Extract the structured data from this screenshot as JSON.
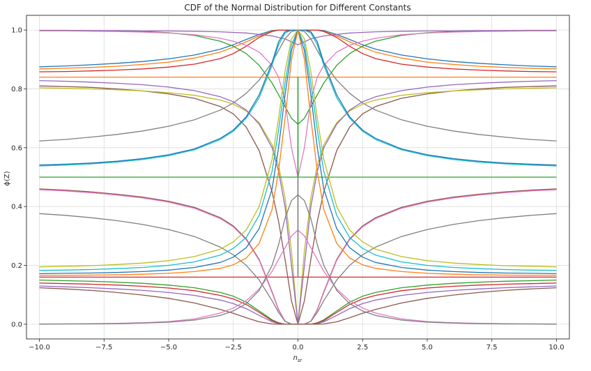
{
  "chart_data": {
    "type": "line",
    "title": "CDF of the Normal Distribution for Different Constants",
    "xlabel": "n_sr",
    "ylabel": "ϕ(Z)",
    "xlim": [
      -10.5,
      10.5
    ],
    "ylim": [
      -0.05,
      1.05
    ],
    "x_ticks": [
      -10,
      -7.5,
      -5,
      -2.5,
      0,
      2.5,
      5,
      7.5,
      10
    ],
    "x_tick_labels": [
      "−10.0",
      "−7.5",
      "−5.0",
      "−2.5",
      "0.0",
      "2.5",
      "5.0",
      "7.5",
      "10.0"
    ],
    "y_ticks": [
      0,
      0.2,
      0.4,
      0.6,
      0.8,
      1.0
    ],
    "y_tick_labels": [
      "0.0",
      "0.2",
      "0.4",
      "0.6",
      "0.8",
      "1.0"
    ],
    "grid": true,
    "legend": "none",
    "colors": [
      "#1f77b4",
      "#ff7f0e",
      "#2ca02c",
      "#d62728",
      "#9467bd",
      "#8c564b",
      "#e377c2",
      "#7f7f7f",
      "#bcbd22",
      "#17becf"
    ],
    "x": [
      -10,
      -9,
      -8,
      -7,
      -6,
      -5,
      -4,
      -3,
      -2.5,
      -2,
      -1.5,
      -1,
      -0.75,
      -0.5,
      -0.25,
      0,
      0.25,
      0.5,
      0.75,
      1,
      1.5,
      2,
      2.5,
      3,
      4,
      5,
      6,
      7,
      8,
      9,
      10
    ],
    "series": [
      {
        "values": [
          0.875,
          0.878,
          0.882,
          0.887,
          0.893,
          0.902,
          0.915,
          0.935,
          0.95,
          0.968,
          0.985,
          0.998,
          1.0,
          1.0,
          1.0,
          1.0,
          1.0,
          1.0,
          1.0,
          0.998,
          0.985,
          0.968,
          0.95,
          0.935,
          0.915,
          0.902,
          0.893,
          0.887,
          0.882,
          0.878,
          0.875
        ]
      },
      {
        "values": [
          0.868,
          0.87,
          0.873,
          0.877,
          0.883,
          0.891,
          0.905,
          0.925,
          0.942,
          0.96,
          0.98,
          0.996,
          1.0,
          1.0,
          1.0,
          1.0,
          1.0,
          1.0,
          1.0,
          0.996,
          0.98,
          0.96,
          0.942,
          0.925,
          0.905,
          0.891,
          0.883,
          0.877,
          0.873,
          0.87,
          0.868
        ]
      },
      {
        "values": [
          0.999,
          0.999,
          0.998,
          0.997,
          0.995,
          0.991,
          0.982,
          0.962,
          0.945,
          0.92,
          0.88,
          0.82,
          0.78,
          0.74,
          0.7,
          0.68,
          0.7,
          0.74,
          0.78,
          0.82,
          0.88,
          0.92,
          0.945,
          0.962,
          0.982,
          0.991,
          0.995,
          0.997,
          0.998,
          0.999,
          0.999
        ]
      },
      {
        "values": [
          0.858,
          0.859,
          0.861,
          0.864,
          0.868,
          0.874,
          0.884,
          0.903,
          0.92,
          0.945,
          0.975,
          0.995,
          1.0,
          1.0,
          1.0,
          1.0,
          1.0,
          1.0,
          1.0,
          0.995,
          0.975,
          0.945,
          0.92,
          0.903,
          0.884,
          0.874,
          0.868,
          0.864,
          0.861,
          0.859,
          0.858
        ]
      },
      {
        "values": [
          0.998,
          0.998,
          0.998,
          0.998,
          0.997,
          0.997,
          0.996,
          0.994,
          0.992,
          0.99,
          0.985,
          0.98,
          0.975,
          0.97,
          0.96,
          0.95,
          0.96,
          0.97,
          0.975,
          0.98,
          0.985,
          0.99,
          0.992,
          0.994,
          0.996,
          0.997,
          0.997,
          0.998,
          0.998,
          0.998,
          0.998
        ]
      },
      {
        "values": [
          0.81,
          0.808,
          0.805,
          0.8,
          0.793,
          0.783,
          0.768,
          0.74,
          0.715,
          0.67,
          0.59,
          0.45,
          0.35,
          0.22,
          0.08,
          0.0,
          0.08,
          0.22,
          0.35,
          0.45,
          0.59,
          0.67,
          0.715,
          0.74,
          0.768,
          0.783,
          0.793,
          0.8,
          0.805,
          0.808,
          0.81
        ]
      },
      {
        "values": [
          0.997,
          0.997,
          0.996,
          0.995,
          0.993,
          0.99,
          0.984,
          0.972,
          0.962,
          0.948,
          0.925,
          0.88,
          0.84,
          0.76,
          0.6,
          0.5,
          0.6,
          0.76,
          0.84,
          0.88,
          0.925,
          0.948,
          0.962,
          0.972,
          0.984,
          0.99,
          0.993,
          0.995,
          0.996,
          0.997,
          0.997
        ]
      },
      {
        "values": [
          0.623,
          0.628,
          0.636,
          0.645,
          0.657,
          0.673,
          0.695,
          0.728,
          0.752,
          0.785,
          0.83,
          0.89,
          0.93,
          0.97,
          0.995,
          1.0,
          0.995,
          0.97,
          0.93,
          0.89,
          0.83,
          0.785,
          0.752,
          0.728,
          0.695,
          0.673,
          0.657,
          0.645,
          0.636,
          0.628,
          0.623
        ]
      },
      {
        "values": [
          0.804,
          0.802,
          0.8,
          0.797,
          0.793,
          0.787,
          0.778,
          0.762,
          0.748,
          0.725,
          0.685,
          0.61,
          0.54,
          0.43,
          0.25,
          0.0,
          0.25,
          0.43,
          0.54,
          0.61,
          0.685,
          0.725,
          0.748,
          0.762,
          0.778,
          0.787,
          0.793,
          0.797,
          0.8,
          0.802,
          0.804
        ]
      },
      {
        "values": [
          0.538,
          0.541,
          0.545,
          0.551,
          0.56,
          0.573,
          0.593,
          0.628,
          0.656,
          0.7,
          0.77,
          0.88,
          0.95,
          0.99,
          1.0,
          1.0,
          1.0,
          0.99,
          0.95,
          0.88,
          0.77,
          0.7,
          0.656,
          0.628,
          0.593,
          0.573,
          0.56,
          0.551,
          0.545,
          0.541,
          0.538
        ]
      },
      {
        "values": [
          0.541,
          0.544,
          0.548,
          0.554,
          0.563,
          0.576,
          0.596,
          0.632,
          0.66,
          0.705,
          0.78,
          0.89,
          0.96,
          0.995,
          1.0,
          1.0,
          1.0,
          0.995,
          0.96,
          0.89,
          0.78,
          0.705,
          0.66,
          0.632,
          0.596,
          0.576,
          0.563,
          0.554,
          0.548,
          0.544,
          0.541
        ]
      },
      {
        "values": [
          0.84,
          0.84,
          0.84,
          0.84,
          0.84,
          0.84,
          0.84,
          0.84,
          0.84,
          0.84,
          0.84,
          0.84,
          0.84,
          0.84,
          0.84,
          0.84,
          0.84,
          0.84,
          0.84,
          0.84,
          0.84,
          0.84,
          0.84,
          0.84,
          0.84,
          0.84,
          0.84,
          0.84,
          0.84,
          0.84,
          0.84
        ]
      },
      {
        "values": [
          0.5,
          0.5,
          0.5,
          0.5,
          0.5,
          0.5,
          0.5,
          0.5,
          0.5,
          0.5,
          0.5,
          0.5,
          0.5,
          0.5,
          0.5,
          0.5,
          0.5,
          0.5,
          0.5,
          0.5,
          0.5,
          0.5,
          0.5,
          0.5,
          0.5,
          0.5,
          0.5,
          0.5,
          0.5,
          0.5,
          0.5
        ]
      },
      {
        "values": [
          0.16,
          0.16,
          0.16,
          0.16,
          0.16,
          0.16,
          0.16,
          0.16,
          0.16,
          0.16,
          0.16,
          0.16,
          0.16,
          0.16,
          0.16,
          0.16,
          0.16,
          0.16,
          0.16,
          0.16,
          0.16,
          0.16,
          0.16,
          0.16,
          0.16,
          0.16,
          0.16,
          0.16,
          0.16,
          0.16,
          0.16
        ]
      },
      {
        "values": [
          0.828,
          0.826,
          0.823,
          0.819,
          0.814,
          0.806,
          0.794,
          0.773,
          0.756,
          0.728,
          0.68,
          0.6,
          0.52,
          0.4,
          0.2,
          0.0,
          0.2,
          0.4,
          0.52,
          0.6,
          0.68,
          0.728,
          0.756,
          0.773,
          0.794,
          0.806,
          0.814,
          0.819,
          0.823,
          0.826,
          0.828
        ]
      },
      {
        "values": [
          0.46,
          0.456,
          0.45,
          0.442,
          0.432,
          0.418,
          0.397,
          0.362,
          0.334,
          0.29,
          0.22,
          0.11,
          0.05,
          0.01,
          0.0,
          0.0,
          0.0,
          0.01,
          0.05,
          0.11,
          0.22,
          0.29,
          0.334,
          0.362,
          0.397,
          0.418,
          0.432,
          0.442,
          0.45,
          0.456,
          0.46
        ]
      },
      {
        "values": [
          0.457,
          0.453,
          0.447,
          0.439,
          0.429,
          0.415,
          0.394,
          0.359,
          0.331,
          0.287,
          0.217,
          0.107,
          0.048,
          0.01,
          0.0,
          0.0,
          0.0,
          0.01,
          0.048,
          0.107,
          0.217,
          0.287,
          0.331,
          0.359,
          0.394,
          0.415,
          0.429,
          0.439,
          0.447,
          0.453,
          0.457
        ]
      },
      {
        "values": [
          0.376,
          0.37,
          0.362,
          0.352,
          0.339,
          0.322,
          0.298,
          0.262,
          0.236,
          0.2,
          0.15,
          0.08,
          0.04,
          0.01,
          0.0,
          0.0,
          0.0,
          0.01,
          0.04,
          0.08,
          0.15,
          0.2,
          0.236,
          0.262,
          0.298,
          0.322,
          0.339,
          0.352,
          0.362,
          0.37,
          0.376
        ]
      },
      {
        "values": [
          0.195,
          0.197,
          0.199,
          0.203,
          0.208,
          0.216,
          0.23,
          0.255,
          0.28,
          0.32,
          0.4,
          0.56,
          0.7,
          0.86,
          0.97,
          1.0,
          0.97,
          0.86,
          0.7,
          0.56,
          0.4,
          0.32,
          0.28,
          0.255,
          0.23,
          0.216,
          0.208,
          0.203,
          0.199,
          0.197,
          0.195
        ]
      },
      {
        "values": [
          0.183,
          0.184,
          0.186,
          0.189,
          0.193,
          0.2,
          0.212,
          0.235,
          0.258,
          0.295,
          0.37,
          0.52,
          0.66,
          0.82,
          0.95,
          1.0,
          0.95,
          0.82,
          0.66,
          0.52,
          0.37,
          0.295,
          0.258,
          0.235,
          0.212,
          0.2,
          0.193,
          0.189,
          0.186,
          0.184,
          0.183
        ]
      },
      {
        "values": [
          0.172,
          0.173,
          0.174,
          0.176,
          0.179,
          0.184,
          0.193,
          0.21,
          0.228,
          0.26,
          0.325,
          0.46,
          0.6,
          0.78,
          0.93,
          1.0,
          0.93,
          0.78,
          0.6,
          0.46,
          0.325,
          0.26,
          0.228,
          0.21,
          0.193,
          0.184,
          0.179,
          0.176,
          0.174,
          0.173,
          0.172
        ]
      },
      {
        "values": [
          0.166,
          0.166,
          0.167,
          0.168,
          0.17,
          0.173,
          0.179,
          0.19,
          0.202,
          0.225,
          0.275,
          0.39,
          0.52,
          0.7,
          0.9,
          1.0,
          0.9,
          0.7,
          0.52,
          0.39,
          0.275,
          0.225,
          0.202,
          0.19,
          0.179,
          0.173,
          0.17,
          0.168,
          0.167,
          0.166,
          0.166
        ]
      },
      {
        "values": [
          0.15,
          0.148,
          0.146,
          0.143,
          0.139,
          0.133,
          0.124,
          0.108,
          0.095,
          0.075,
          0.045,
          0.015,
          0.005,
          0.0,
          0.0,
          0.0,
          0.0,
          0.0,
          0.005,
          0.015,
          0.045,
          0.075,
          0.095,
          0.108,
          0.124,
          0.133,
          0.139,
          0.143,
          0.146,
          0.148,
          0.15
        ]
      },
      {
        "values": [
          0.14,
          0.138,
          0.136,
          0.133,
          0.129,
          0.123,
          0.114,
          0.098,
          0.086,
          0.067,
          0.04,
          0.012,
          0.004,
          0.0,
          0.0,
          0.0,
          0.0,
          0.0,
          0.004,
          0.012,
          0.04,
          0.067,
          0.086,
          0.098,
          0.114,
          0.123,
          0.129,
          0.133,
          0.136,
          0.138,
          0.14
        ]
      },
      {
        "values": [
          0.13,
          0.127,
          0.124,
          0.12,
          0.115,
          0.108,
          0.098,
          0.082,
          0.07,
          0.053,
          0.03,
          0.008,
          0.002,
          0.0,
          0.0,
          0.0,
          0.0,
          0.0,
          0.002,
          0.008,
          0.03,
          0.053,
          0.07,
          0.082,
          0.098,
          0.108,
          0.115,
          0.12,
          0.124,
          0.127,
          0.13
        ]
      },
      {
        "values": [
          0.124,
          0.12,
          0.115,
          0.108,
          0.099,
          0.088,
          0.072,
          0.05,
          0.037,
          0.022,
          0.008,
          0.001,
          0.0,
          0.0,
          0.0,
          0.0,
          0.0,
          0.0,
          0.0,
          0.001,
          0.008,
          0.022,
          0.037,
          0.05,
          0.072,
          0.088,
          0.099,
          0.108,
          0.115,
          0.12,
          0.124
        ]
      },
      {
        "values": [
          0.001,
          0.001,
          0.002,
          0.003,
          0.005,
          0.009,
          0.018,
          0.038,
          0.055,
          0.08,
          0.12,
          0.18,
          0.22,
          0.26,
          0.3,
          0.32,
          0.3,
          0.26,
          0.22,
          0.18,
          0.12,
          0.08,
          0.055,
          0.038,
          0.018,
          0.009,
          0.005,
          0.003,
          0.002,
          0.001,
          0.001
        ]
      },
      {
        "values": [
          0.0,
          0.001,
          0.001,
          0.002,
          0.004,
          0.007,
          0.014,
          0.03,
          0.045,
          0.07,
          0.115,
          0.2,
          0.27,
          0.36,
          0.42,
          0.44,
          0.42,
          0.36,
          0.27,
          0.2,
          0.115,
          0.07,
          0.045,
          0.03,
          0.014,
          0.007,
          0.004,
          0.002,
          0.001,
          0.001,
          0.0
        ]
      }
    ]
  }
}
